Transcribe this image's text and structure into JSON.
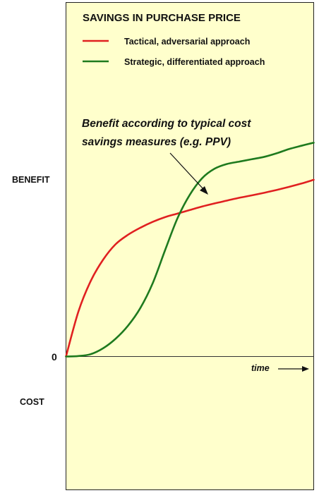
{
  "chart_data": {
    "type": "line",
    "title": "SAVINGS IN PURCHASE PRICE",
    "ylabel_top": "BENEFIT",
    "ylabel_bottom": "COST",
    "zero_label": "0",
    "xlabel": "time",
    "annotation": "Benefit according to typical cost savings measures (e.g. PPV)",
    "annotation_lines": [
      "Benefit according to typical cost",
      "savings measures (e.g. PPV)"
    ],
    "legend_position": "top-left",
    "grid": false,
    "background": "#FFFFCC",
    "xlim": [
      0,
      10
    ],
    "ylim": [
      -6.2,
      10
    ],
    "x": [
      0,
      0.5,
      1,
      1.5,
      2,
      2.5,
      3,
      3.5,
      4,
      4.5,
      5,
      5.5,
      6,
      6.5,
      7,
      7.5,
      8,
      8.5,
      9,
      9.5,
      10
    ],
    "series": [
      {
        "name": "Tactical, adversarial approach",
        "legend_lines": [
          "Tactical, adversarial approach"
        ],
        "color": "#E02020",
        "values": [
          0,
          1.9,
          3.2,
          4.1,
          4.75,
          5.15,
          5.45,
          5.7,
          5.9,
          6.05,
          6.2,
          6.35,
          6.48,
          6.6,
          6.72,
          6.82,
          6.93,
          7.05,
          7.18,
          7.32,
          7.48
        ]
      },
      {
        "name": "Strategic, differentiated approach",
        "legend_lines": [
          "Strategic, differentiated approach"
        ],
        "color": "#1E7A1E",
        "values": [
          0,
          0.02,
          0.1,
          0.35,
          0.75,
          1.3,
          2.05,
          3.1,
          4.5,
          5.85,
          6.85,
          7.55,
          7.95,
          8.15,
          8.25,
          8.35,
          8.45,
          8.6,
          8.78,
          8.92,
          9.05
        ]
      }
    ]
  }
}
